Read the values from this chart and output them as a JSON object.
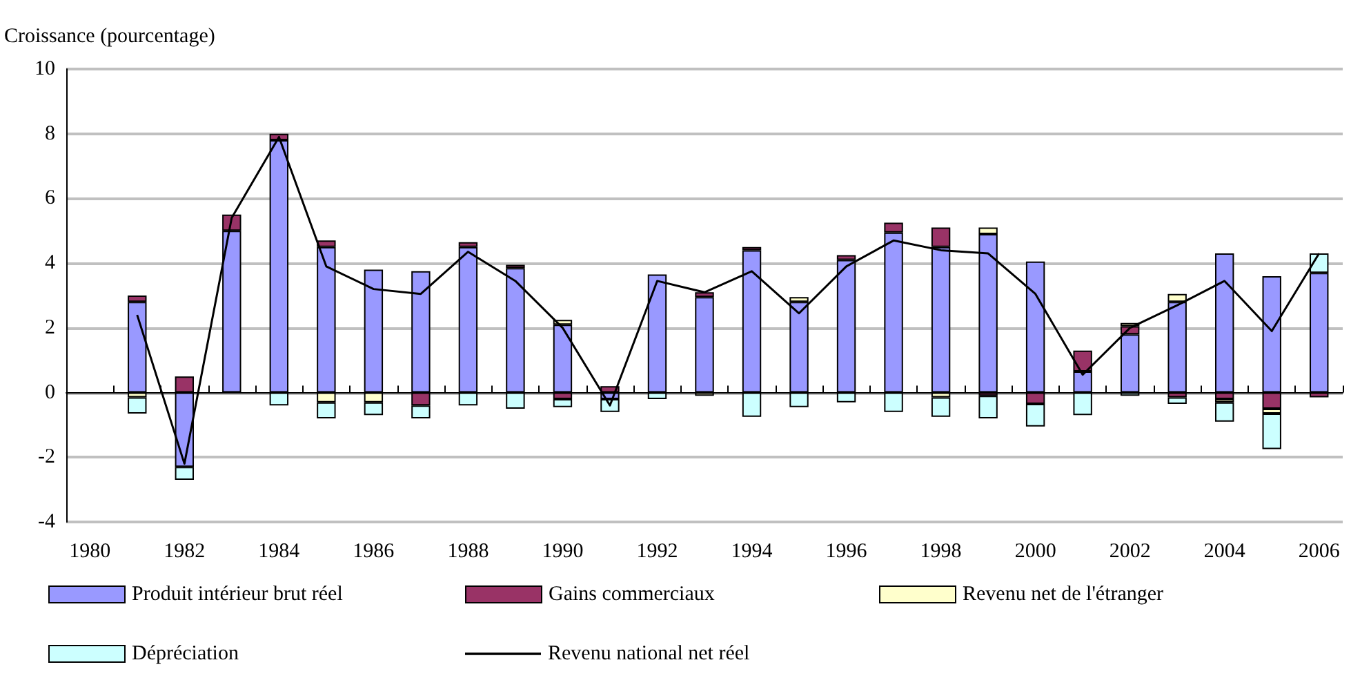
{
  "chart_data": {
    "type": "bar",
    "stacked": true,
    "ylabel": "Croissance (pourcentage)",
    "categories": [
      "1980",
      null,
      "1982",
      null,
      "1984",
      null,
      "1986",
      null,
      "1988",
      null,
      "1990",
      null,
      "1992",
      null,
      "1994",
      null,
      "1996",
      null,
      "1998",
      null,
      "2000",
      null,
      "2002",
      null,
      "2004",
      null,
      "2006"
    ],
    "series": [
      {
        "name": "Produit intérieur brut réel",
        "color": "#9999ff",
        "values": [
          null,
          2.8,
          -2.3,
          5.0,
          7.8,
          4.5,
          3.8,
          3.75,
          4.5,
          3.85,
          2.1,
          -0.2,
          3.65,
          2.95,
          4.4,
          2.8,
          4.1,
          4.95,
          4.5,
          4.9,
          4.05,
          0.65,
          1.8,
          2.8,
          4.3,
          3.6,
          3.7
        ]
      },
      {
        "name": "Gains commerciaux",
        "color": "#993366",
        "values": [
          null,
          0.2,
          0.5,
          0.5,
          0.2,
          0.2,
          null,
          -0.4,
          0.15,
          0.1,
          -0.2,
          0.2,
          null,
          0.15,
          0.1,
          null,
          0.15,
          0.3,
          0.6,
          -0.1,
          -0.35,
          0.65,
          0.25,
          -0.15,
          -0.2,
          -0.5,
          -0.15
        ]
      },
      {
        "name": "Revenu net de l'étranger",
        "color": "#ffffcc",
        "values": [
          null,
          -0.15,
          null,
          null,
          null,
          -0.3,
          -0.3,
          null,
          null,
          null,
          0.15,
          null,
          null,
          -0.1,
          null,
          0.15,
          null,
          null,
          -0.15,
          0.2,
          null,
          null,
          0.1,
          0.25,
          -0.1,
          -0.15,
          null
        ]
      },
      {
        "name": "Dépréciation",
        "color": "#ccffff",
        "values": [
          null,
          -0.5,
          -0.4,
          null,
          -0.4,
          -0.5,
          -0.4,
          -0.4,
          -0.4,
          -0.5,
          -0.25,
          -0.4,
          -0.2,
          null,
          -0.75,
          -0.45,
          -0.3,
          -0.6,
          -0.6,
          -0.7,
          -0.7,
          -0.7,
          -0.1,
          -0.2,
          -0.6,
          -1.1,
          0.6
        ]
      },
      {
        "name": "Revenu national net réel",
        "type": "line",
        "color": "#000000",
        "marker": "none",
        "values": [
          null,
          2.4,
          -2.2,
          5.4,
          7.9,
          3.9,
          3.2,
          3.05,
          4.35,
          3.45,
          2.0,
          -0.4,
          3.45,
          3.1,
          3.75,
          2.45,
          3.9,
          4.7,
          4.4,
          4.3,
          3.05,
          0.55,
          2.0,
          2.7,
          3.45,
          1.9,
          4.3
        ]
      }
    ],
    "ylim": [
      -4,
      10
    ],
    "yticks": [
      -4,
      -2,
      0,
      2,
      4,
      6,
      8,
      10
    ],
    "grid": "y",
    "legend": "bottom"
  }
}
